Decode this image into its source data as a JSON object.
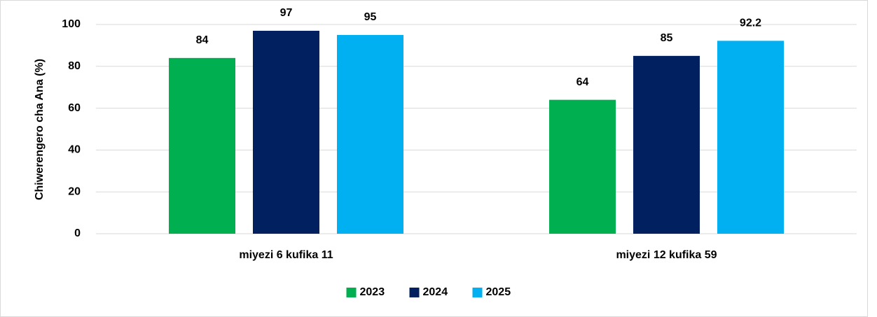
{
  "chart_data": {
    "type": "bar",
    "y_label": "Chiwerengero cha Ana (%)",
    "categories": [
      "miyezi 6 kufika 11",
      "miyezi 12 kufika 59"
    ],
    "series": [
      {
        "name": "2023",
        "color": "#00b050",
        "values": [
          84,
          64
        ]
      },
      {
        "name": "2024",
        "color": "#002060",
        "values": [
          97,
          85
        ]
      },
      {
        "name": "2025",
        "color": "#00b0f0",
        "values": [
          95,
          92.2
        ]
      }
    ],
    "ylim": [
      0,
      100
    ],
    "yticks": [
      0,
      20,
      40,
      60,
      80,
      100
    ],
    "grid": true,
    "legend": "bottom"
  }
}
